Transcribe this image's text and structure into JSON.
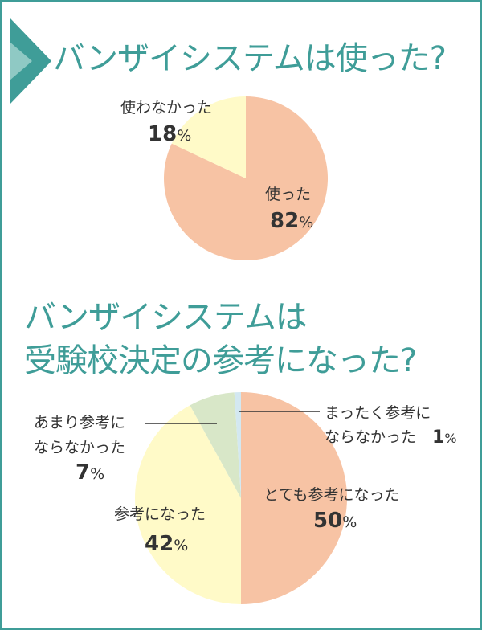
{
  "colors": {
    "accent": "#3f9d98",
    "peach": "#f7c3a4",
    "cream": "#fffac8",
    "sage": "#d8e7c8",
    "lightblue": "#d3e8f1"
  },
  "chart_data": [
    {
      "type": "pie",
      "title": "バンザイシステムは使った?",
      "slices": [
        {
          "label": "使った",
          "value": 82,
          "color": "#f7c3a4"
        },
        {
          "label": "使わなかった",
          "value": 18,
          "color": "#fffac8"
        }
      ],
      "unit": "%"
    },
    {
      "type": "pie",
      "title": "バンザイシステムは受験校決定の参考になった?",
      "title_lines": [
        "バンザイシステムは",
        "受験校決定の参考になった?"
      ],
      "slices": [
        {
          "label": "とても参考になった",
          "value": 50,
          "color": "#f7c3a4"
        },
        {
          "label": "参考になった",
          "value": 42,
          "color": "#fffac8"
        },
        {
          "label": "あまり参考にならなかった",
          "label_lines": [
            "あまり参考に",
            "ならなかった"
          ],
          "value": 7,
          "color": "#d8e7c8"
        },
        {
          "label": "まったく参考にならなかった",
          "label_lines": [
            "まったく参考に",
            "ならなかった"
          ],
          "value": 1,
          "color": "#d3e8f1"
        }
      ],
      "unit": "%"
    }
  ]
}
